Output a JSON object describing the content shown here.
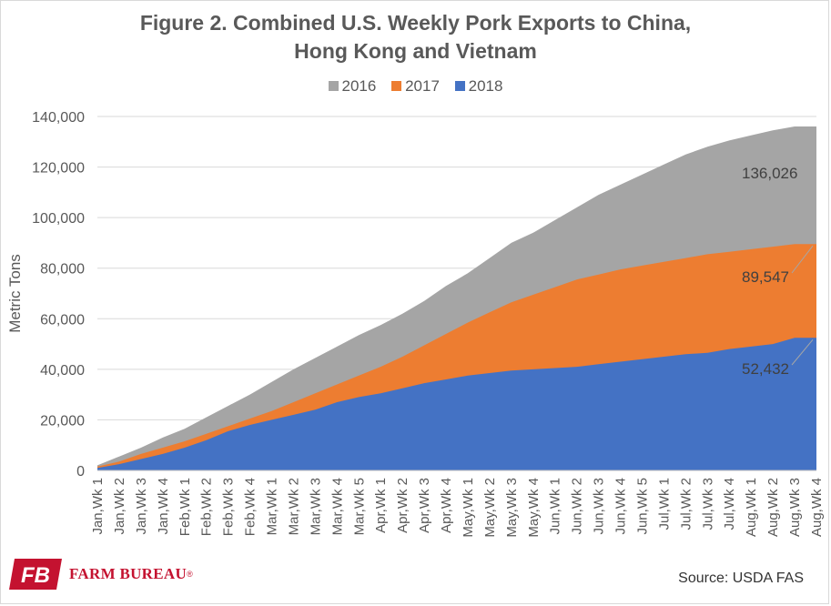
{
  "chart_data": {
    "type": "area",
    "title_lines": [
      "Figure 2. Combined U.S. Weekly Pork Exports to China,",
      "Hong Kong and Vietnam"
    ],
    "ylabel": "Metric Tons",
    "xlabel": "",
    "ylim": [
      0,
      140000
    ],
    "yticks": [
      0,
      20000,
      40000,
      60000,
      80000,
      100000,
      120000,
      140000
    ],
    "ytick_labels": [
      "0",
      "20,000",
      "40,000",
      "60,000",
      "80,000",
      "100,000",
      "120,000",
      "140,000"
    ],
    "grid": true,
    "legend_position": "top",
    "categories": [
      "Jan,Wk 1",
      "Jan,Wk 2",
      "Jan,Wk 3",
      "Jan,Wk 4",
      "Feb,Wk 1",
      "Feb,Wk 2",
      "Feb,Wk 3",
      "Feb,Wk 4",
      "Mar,Wk 1",
      "Mar,Wk 2",
      "Mar,Wk 3",
      "Mar,Wk 4",
      "Mar,Wk 5",
      "Apr,Wk 1",
      "Apr,Wk 2",
      "Apr,Wk 3",
      "Apr,Wk 4",
      "May,Wk 1",
      "May,Wk 2",
      "May,Wk 3",
      "May,Wk 4",
      "Jun,Wk 1",
      "Jun,Wk 2",
      "Jun,Wk 3",
      "Jun,Wk 4",
      "Jun,Wk 5",
      "Jul,Wk 1",
      "Jul,Wk 2",
      "Jul,Wk 3",
      "Jul,Wk 4",
      "Aug,Wk 1",
      "Aug,Wk 2",
      "Aug,Wk 3",
      "Aug,Wk 4"
    ],
    "series": [
      {
        "name": "2016",
        "color": "#a5a5a5",
        "values": [
          2000,
          5500,
          9000,
          13000,
          16500,
          21000,
          25500,
          30000,
          35000,
          40000,
          44500,
          49000,
          53500,
          57500,
          62000,
          67000,
          73000,
          78000,
          84000,
          90000,
          94000,
          99000,
          104000,
          109000,
          113000,
          117000,
          121000,
          125000,
          128000,
          130500,
          132500,
          134500,
          136026,
          136026
        ]
      },
      {
        "name": "2017",
        "color": "#ed7d31",
        "values": [
          1500,
          3500,
          6500,
          9000,
          11500,
          14500,
          17500,
          20500,
          23500,
          27000,
          30500,
          34000,
          37500,
          41000,
          45000,
          49500,
          54000,
          58500,
          62500,
          66500,
          69500,
          72500,
          75500,
          77500,
          79500,
          81000,
          82500,
          84000,
          85500,
          86500,
          87500,
          88500,
          89547,
          89547
        ]
      },
      {
        "name": "2018",
        "color": "#4472c4",
        "values": [
          1000,
          2500,
          4500,
          6500,
          9000,
          12000,
          15500,
          18000,
          20000,
          22000,
          24000,
          27000,
          29000,
          30500,
          32500,
          34500,
          36000,
          37500,
          38500,
          39500,
          40000,
          40500,
          41000,
          42000,
          43000,
          44000,
          45000,
          46000,
          46500,
          48000,
          49000,
          50000,
          52432,
          52432
        ]
      }
    ],
    "value_labels": [
      {
        "series": "2016",
        "text": "136,026"
      },
      {
        "series": "2017",
        "text": "89,547"
      },
      {
        "series": "2018",
        "text": "52,432"
      }
    ]
  },
  "legend": [
    {
      "label": "2016",
      "color": "#a5a5a5"
    },
    {
      "label": "2017",
      "color": "#ed7d31"
    },
    {
      "label": "2018",
      "color": "#4472c4"
    }
  ],
  "logo": {
    "text": "FARM BUREAU",
    "mark_text": "FB",
    "color": "#c41230"
  },
  "source": "Source: USDA FAS"
}
